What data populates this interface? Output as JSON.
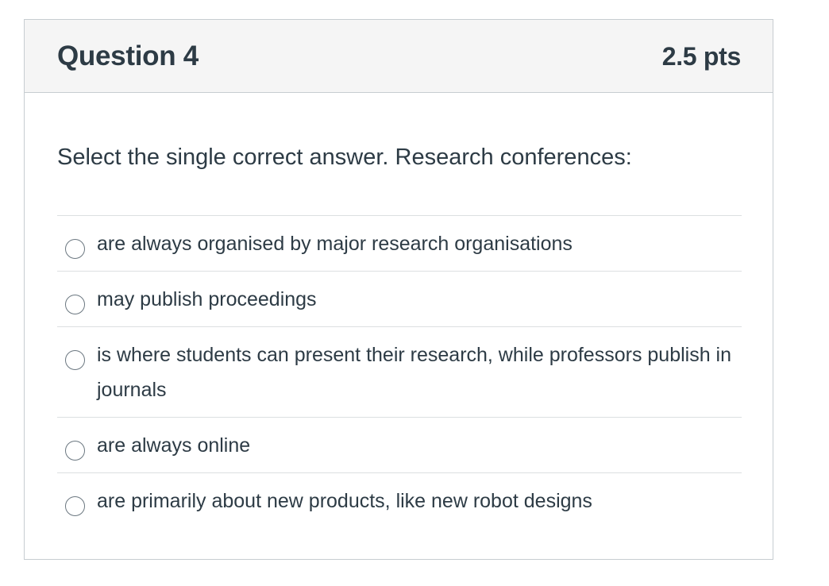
{
  "question": {
    "title": "Question 4",
    "points": "2.5 pts",
    "prompt": "Select the single correct answer. Research conferences:",
    "answers": [
      {
        "label": "are always organised by major research organisations",
        "selected": false
      },
      {
        "label": "may publish proceedings",
        "selected": false
      },
      {
        "label": "is where students can present their research, while professors publish in journals",
        "selected": false
      },
      {
        "label": "are always online",
        "selected": false
      },
      {
        "label": "are primarily about new products, like new robot designs",
        "selected": false
      }
    ]
  },
  "colors": {
    "header_bg": "#f5f5f5",
    "border": "#c7cdd1",
    "text": "#2d3b45"
  }
}
